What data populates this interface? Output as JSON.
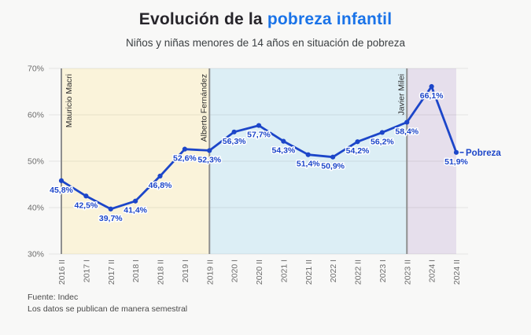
{
  "header": {
    "title_prefix": "Evolución de la",
    "title_highlight": "pobreza infantil",
    "subtitle": "Niños y niñas menores de 14 años en situación de pobreza",
    "highlight_color": "#1a73e8"
  },
  "footer": {
    "source": "Fuente: Indec",
    "note": "Los datos se publican de manera semestral"
  },
  "chart_data": {
    "type": "line",
    "title": "Evolución de la pobreza infantil",
    "subtitle": "Niños y niñas menores de 14 años en situación de pobreza",
    "categories": [
      "2016 II",
      "2017 I",
      "2017 II",
      "2018 I",
      "2018 II",
      "2019 I",
      "2019 II",
      "2020 I",
      "2020 II",
      "2021 I",
      "2021 II",
      "2022 I",
      "2022 II",
      "2023 I",
      "2023 II",
      "2024 I",
      "2024 II"
    ],
    "series": [
      {
        "name": "Pobreza",
        "values": [
          45.8,
          42.5,
          39.7,
          41.4,
          46.8,
          52.6,
          52.3,
          56.3,
          57.7,
          54.3,
          51.4,
          50.9,
          54.2,
          56.2,
          58.4,
          66.1,
          51.9
        ]
      }
    ],
    "value_labels": [
      "45,8%",
      "42,5%",
      "39,7%",
      "41,4%",
      "46,8%",
      "52,6%",
      "52,3%",
      "56,3%",
      "57,7%",
      "54,3%",
      "51,4%",
      "50,9%",
      "54,2%",
      "56,2%",
      "58,4%",
      "66,1%",
      "51,9%"
    ],
    "ylim": [
      30,
      70
    ],
    "y_ticks": [
      "30%",
      "40%",
      "50%",
      "60%",
      "70%"
    ],
    "grid": "horizontal",
    "legend_position": "end-of-line",
    "line_color": "#1c46c9",
    "tick_color": "#6d6d6d",
    "regions": [
      {
        "label": "Mauricio Macri",
        "start": "2016 II",
        "end": "2019 II",
        "color": "#faf3da",
        "label_side": "right"
      },
      {
        "label": "Alberto Fernández",
        "start": "2019 II",
        "end": "2023 II",
        "color": "#dceef5",
        "label_side": "left"
      },
      {
        "label": "Javier Milei",
        "start": "2023 II",
        "end": "2024 II",
        "color": "#e6dfec",
        "label_side": "left"
      }
    ]
  }
}
